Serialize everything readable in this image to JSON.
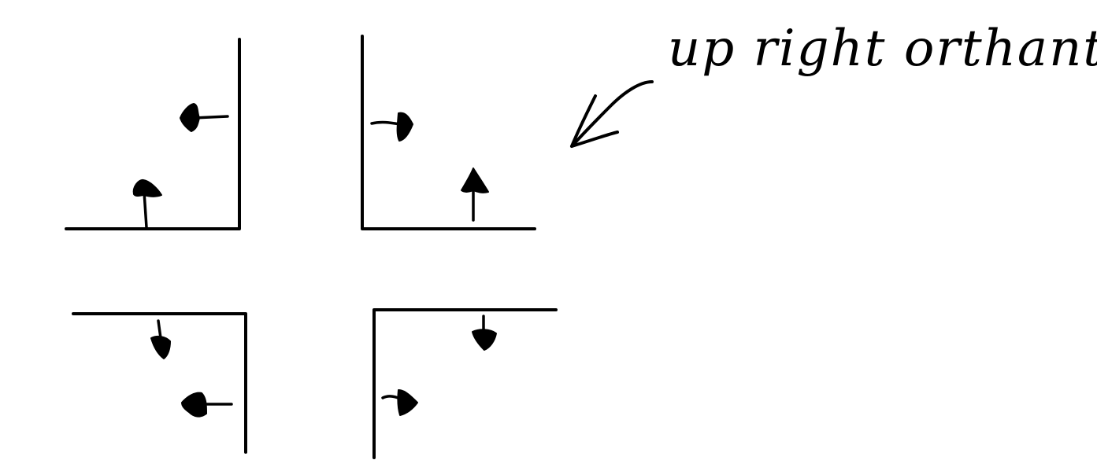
{
  "annotation": {
    "text": "up right orthant",
    "pointer": "arrow pointing down-left toward the upper-right corner figure"
  },
  "panels": [
    {
      "id": "panel-top-left",
      "walls": [
        "bottom",
        "right"
      ],
      "arrows": [
        "up",
        "left"
      ]
    },
    {
      "id": "panel-top-right",
      "walls": [
        "bottom",
        "left"
      ],
      "arrows": [
        "right",
        "up"
      ]
    },
    {
      "id": "panel-bottom-left",
      "walls": [
        "top",
        "right"
      ],
      "arrows": [
        "down",
        "left"
      ]
    },
    {
      "id": "panel-bottom-right",
      "walls": [
        "top",
        "left"
      ],
      "arrows": [
        "down",
        "right"
      ]
    }
  ],
  "colors": {
    "ink": "#000000",
    "background": "#ffffff"
  }
}
